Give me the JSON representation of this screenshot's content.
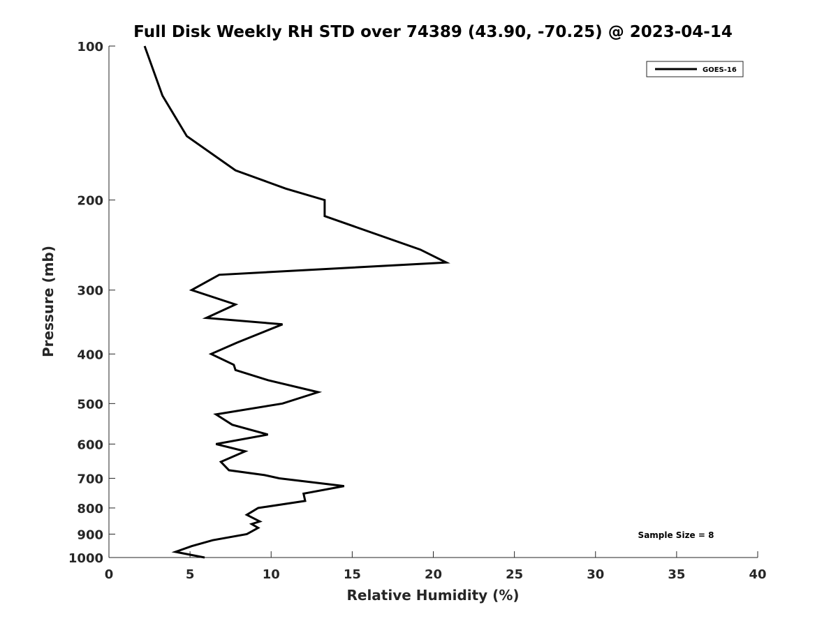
{
  "chart_data": {
    "type": "line",
    "title": "Full Disk Weekly RH STD over 74389 (43.90, -70.25) @ 2023-04-14",
    "xlabel": "Relative Humidity (%)",
    "ylabel": "Pressure (mb)",
    "xlim": [
      0,
      40
    ],
    "ylim": [
      100,
      1000
    ],
    "yscale": "log",
    "yreversed": true,
    "xticks": [
      "0",
      "5",
      "10",
      "15",
      "20",
      "25",
      "30",
      "35",
      "40"
    ],
    "yticks": [
      "100",
      "200",
      "300",
      "400",
      "500",
      "600",
      "700",
      "800",
      "900",
      "1000"
    ],
    "grid": false,
    "legend_position": "top-right",
    "annotation": "Sample Size = 8",
    "series": [
      {
        "name": "GOES-16",
        "color": "#000000",
        "points": [
          [
            2.2,
            100
          ],
          [
            3.3,
            125
          ],
          [
            4.8,
            150
          ],
          [
            7.8,
            175
          ],
          [
            10.9,
            190
          ],
          [
            13.3,
            200
          ],
          [
            13.3,
            215
          ],
          [
            19.2,
            250
          ],
          [
            20.8,
            265
          ],
          [
            6.8,
            280
          ],
          [
            5.1,
            300
          ],
          [
            7.8,
            320
          ],
          [
            6.0,
            340
          ],
          [
            10.7,
            350
          ],
          [
            7.9,
            380
          ],
          [
            6.3,
            400
          ],
          [
            7.7,
            420
          ],
          [
            7.8,
            430
          ],
          [
            9.8,
            450
          ],
          [
            12.9,
            475
          ],
          [
            10.7,
            500
          ],
          [
            6.6,
            525
          ],
          [
            7.6,
            550
          ],
          [
            9.8,
            575
          ],
          [
            6.6,
            600
          ],
          [
            8.4,
            620
          ],
          [
            6.9,
            650
          ],
          [
            7.4,
            675
          ],
          [
            9.6,
            690
          ],
          [
            10.5,
            700
          ],
          [
            14.5,
            725
          ],
          [
            12.0,
            750
          ],
          [
            12.1,
            775
          ],
          [
            9.2,
            800
          ],
          [
            8.5,
            825
          ],
          [
            9.3,
            850
          ],
          [
            8.8,
            860
          ],
          [
            9.2,
            875
          ],
          [
            8.5,
            900
          ],
          [
            6.4,
            925
          ],
          [
            5.1,
            950
          ],
          [
            4.1,
            975
          ],
          [
            5.9,
            1000
          ]
        ]
      }
    ]
  }
}
